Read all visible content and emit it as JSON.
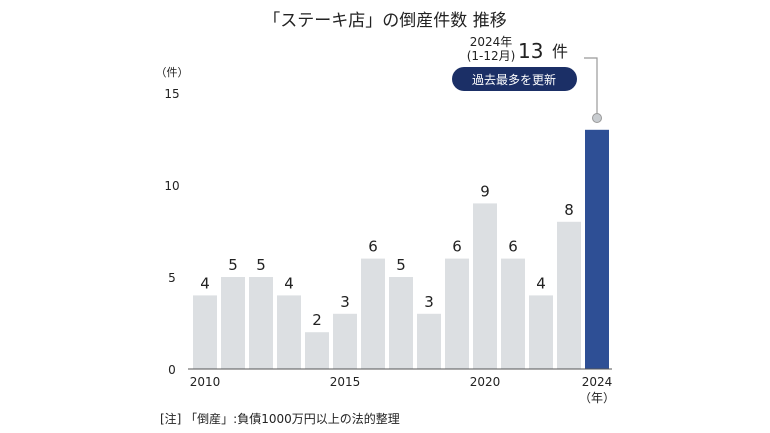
{
  "chart_data": {
    "type": "bar",
    "title": "「ステーキ店」の倒産件数 推移",
    "ylabel": "（件）",
    "xlabel": "（年）",
    "ylim": [
      0,
      15
    ],
    "yticks": [
      "0",
      "5",
      "10",
      "15"
    ],
    "categories": [
      "2010",
      "2011",
      "2012",
      "2013",
      "2014",
      "2015",
      "2016",
      "2017",
      "2018",
      "2019",
      "2020",
      "2021",
      "2022",
      "2023",
      "2024"
    ],
    "xtick_labels": {
      "2010": "2010",
      "2015": "2015",
      "2020": "2020",
      "2024": "2024"
    },
    "values": [
      4,
      5,
      5,
      4,
      2,
      3,
      6,
      5,
      3,
      6,
      9,
      6,
      4,
      8,
      13
    ],
    "highlight_index": 14,
    "colors": {
      "bar": "#dcdfe2",
      "highlight": "#2e4f95",
      "badge": "#1b2f66",
      "text": "#222222"
    },
    "annotation": {
      "year_label": "2024年",
      "period_label": "(1-12月)",
      "value": "13",
      "unit": "件",
      "badge": "過去最多を更新"
    },
    "note": "[注] 「倒産」:負債1000万円以上の法的整理",
    "grid": false
  }
}
